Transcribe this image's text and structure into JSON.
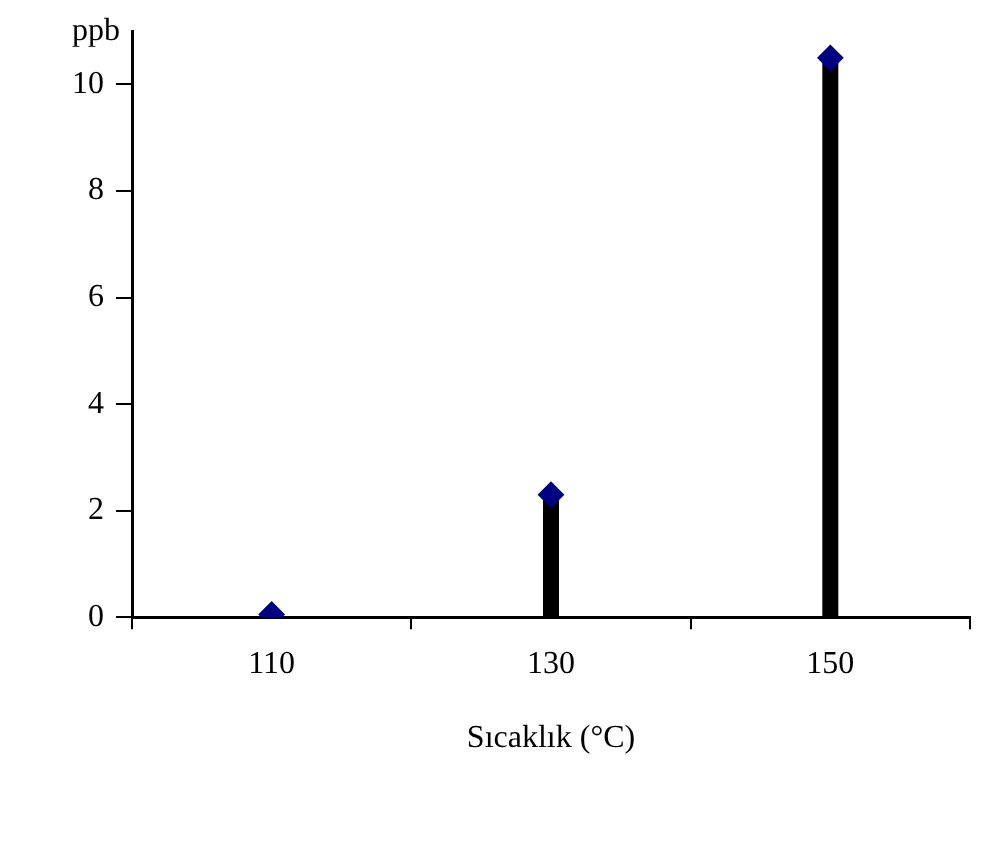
{
  "chart_data": {
    "type": "lollipop",
    "xlabel": "Sıcaklık (°C)",
    "ylabel": "ppb",
    "categories": [
      "110",
      "130",
      "150"
    ],
    "series": [
      {
        "color": "#000080",
        "values": [
          0.05,
          2.3,
          10.5
        ]
      }
    ],
    "ylim": [
      0,
      11
    ],
    "yticks": [
      0,
      2,
      4,
      6,
      8,
      10
    ],
    "marker": "diamond",
    "legend": false
  }
}
